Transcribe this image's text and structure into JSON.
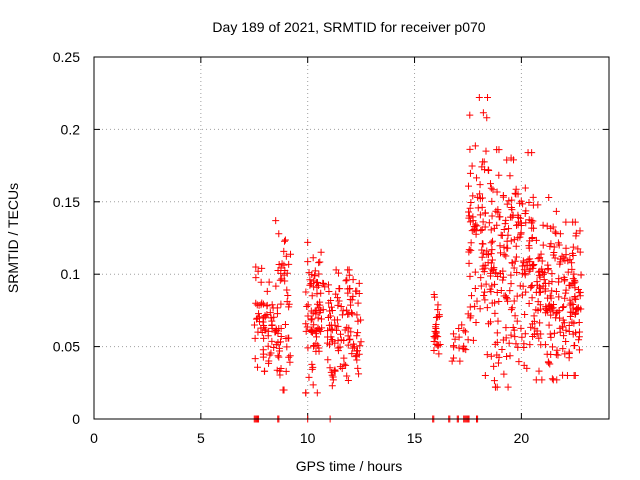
{
  "chart_data": {
    "type": "scatter",
    "title": "Day 189 of 2021, SRMTID for receiver p070",
    "xlabel": "GPS time / hours",
    "ylabel": "SRMTID / TECUs",
    "xlim": [
      0,
      24.1
    ],
    "ylim": [
      0,
      0.25
    ],
    "xticks": [
      0,
      5,
      10,
      15,
      20
    ],
    "xtick_labels": [
      "0",
      "5",
      "10",
      "15",
      "20"
    ],
    "yticks": [
      0,
      0.05,
      0.1,
      0.15,
      0.2,
      0.25
    ],
    "ytick_labels": [
      "0",
      "0.05",
      "0.1",
      "0.15",
      "0.2",
      "0.25"
    ],
    "grid": true,
    "marker": "+",
    "marker_color": "#ff0000",
    "clusters": [
      {
        "x_range": [
          7.5,
          8.5
        ],
        "y_range": [
          0.033,
          0.105
        ],
        "count": 60
      },
      {
        "x_range": [
          8.5,
          9.2
        ],
        "y_range": [
          0.02,
          0.137
        ],
        "count": 55
      },
      {
        "x_range": [
          9.9,
          10.8
        ],
        "y_range": [
          0.018,
          0.122
        ],
        "count": 80
      },
      {
        "x_range": [
          10.9,
          12.5
        ],
        "y_range": [
          0.023,
          0.103
        ],
        "count": 110
      },
      {
        "x_range": [
          15.9,
          16.2
        ],
        "y_range": [
          0.045,
          0.086
        ],
        "count": 25
      },
      {
        "x_range": [
          16.7,
          17.4
        ],
        "y_range": [
          0.04,
          0.065
        ],
        "count": 15
      },
      {
        "x_range": [
          17.5,
          18.5
        ],
        "y_range": [
          0.03,
          0.222
        ],
        "count": 90
      },
      {
        "x_range": [
          18.5,
          19.6
        ],
        "y_range": [
          0.022,
          0.186
        ],
        "count": 110
      },
      {
        "x_range": [
          19.6,
          20.6
        ],
        "y_range": [
          0.035,
          0.184
        ],
        "count": 95
      },
      {
        "x_range": [
          20.6,
          21.8
        ],
        "y_range": [
          0.027,
          0.153
        ],
        "count": 110
      },
      {
        "x_range": [
          21.8,
          22.8
        ],
        "y_range": [
          0.03,
          0.136
        ],
        "count": 95
      }
    ],
    "zero_points_x": [
      7.5,
      7.55,
      7.6,
      7.65,
      7.7,
      8.6,
      8.65,
      10.0,
      11.05,
      15.85,
      15.9,
      16.6,
      16.65,
      17.0,
      17.05,
      17.3,
      17.35,
      17.4,
      17.45,
      17.5,
      17.55,
      17.9,
      17.95
    ]
  }
}
